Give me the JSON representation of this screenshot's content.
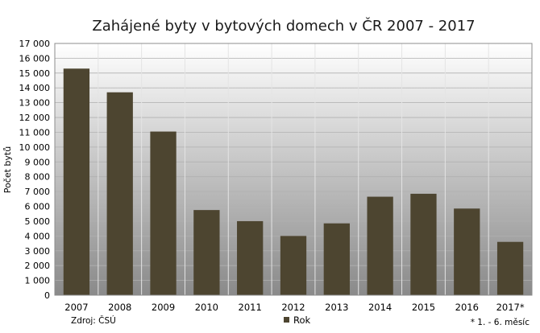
{
  "chart_data": {
    "type": "bar",
    "title": "Zahájené byty v bytových domech v ČR 2007 - 2017",
    "ylabel": "Počet bytů",
    "xlabel": "",
    "categories": [
      "2007",
      "2008",
      "2009",
      "2010",
      "2011",
      "2012",
      "2013",
      "2014",
      "2015",
      "2016",
      "2017*"
    ],
    "series": [
      {
        "name": "Rok",
        "values": [
          15300,
          13700,
          11050,
          5750,
          5000,
          4000,
          4850,
          6650,
          6850,
          5850,
          3600
        ],
        "color": "#4d4530"
      }
    ],
    "ylim": [
      0,
      17000
    ],
    "ytick_step": 1000,
    "yticks": [
      "0",
      "1 000",
      "2 000",
      "3 000",
      "4 000",
      "5 000",
      "6 000",
      "7 000",
      "8 000",
      "9 000",
      "10 000",
      "11 000",
      "12 000",
      "13 000",
      "14 000",
      "15 000",
      "16 000",
      "17 000"
    ],
    "grid": true,
    "legend_position": "bottom-center",
    "source": "Zdroj: ČSÚ",
    "footnote": "* 1. - 6. měsíc"
  }
}
